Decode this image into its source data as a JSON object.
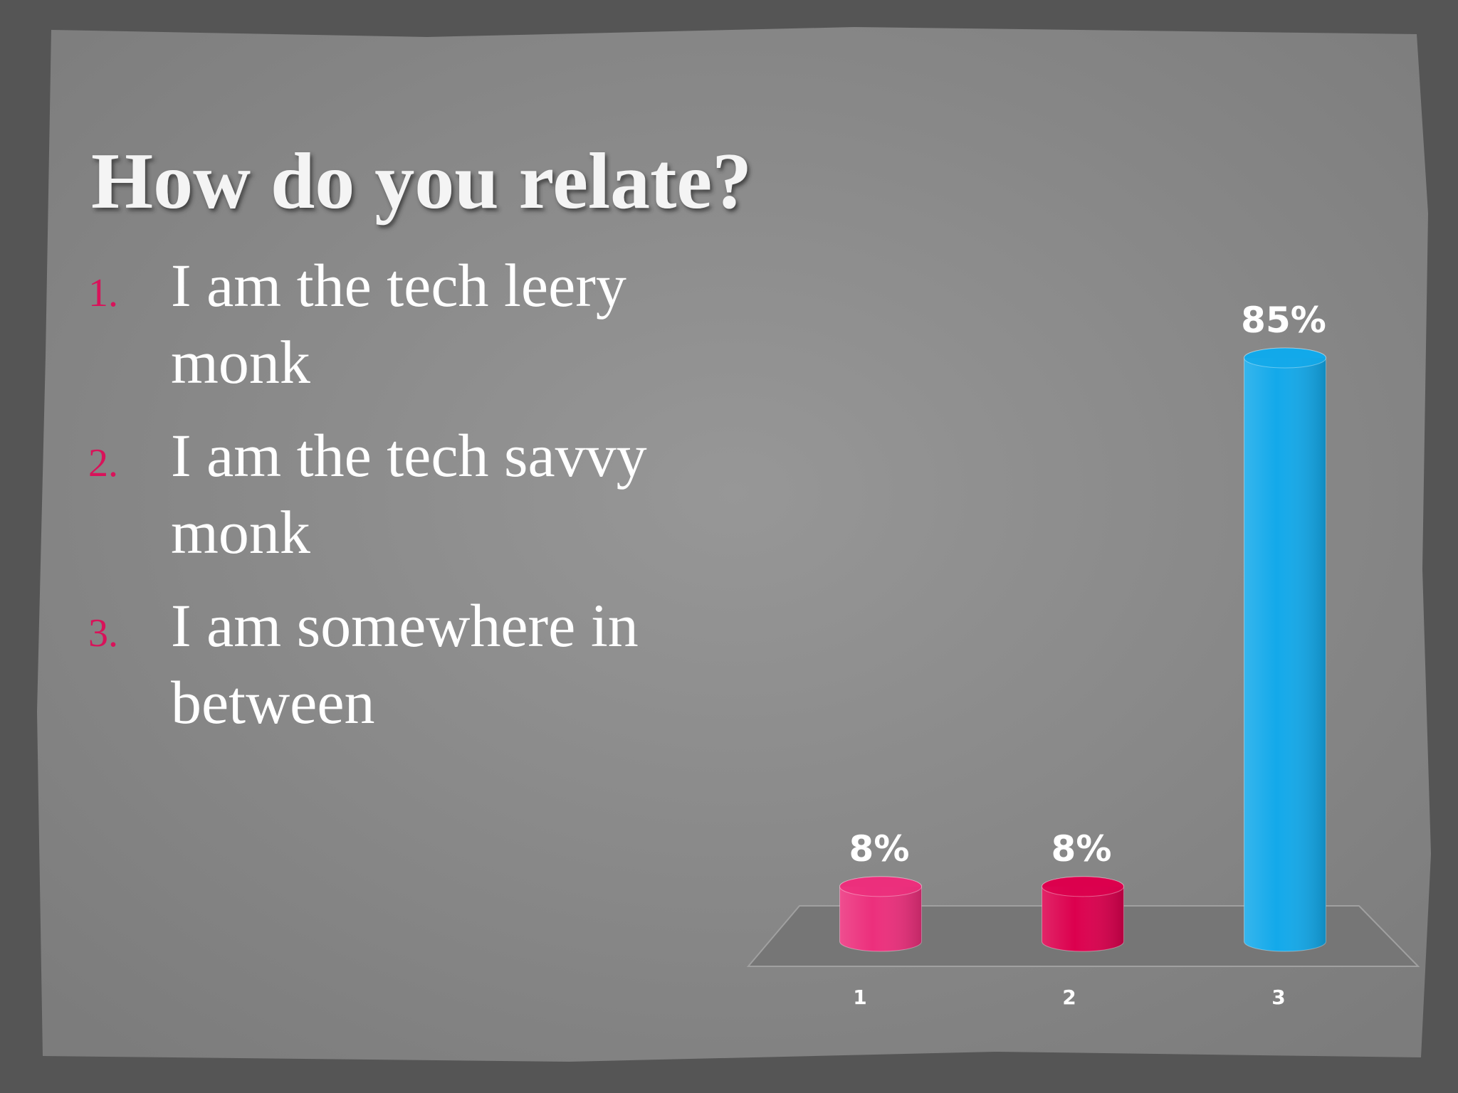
{
  "title": "How do you relate?",
  "list": [
    {
      "number": "1.",
      "text": "I am the tech leery monk"
    },
    {
      "number": "2.",
      "text": "I am the tech savvy monk"
    },
    {
      "number": "3.",
      "text": "I am somewhere in between"
    }
  ],
  "chart_data": {
    "type": "bar",
    "categories": [
      "1",
      "2",
      "3"
    ],
    "values": [
      8,
      8,
      85
    ],
    "value_labels": [
      "8%",
      "8%",
      "85%"
    ],
    "colors": [
      "#ec2f7c",
      "#dc004e",
      "#13a9ea"
    ]
  }
}
